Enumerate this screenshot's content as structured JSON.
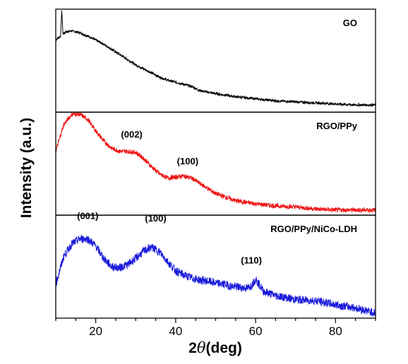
{
  "chart_data": {
    "type": "line",
    "title": "",
    "xlabel": "2θ (deg)",
    "xlabel_parts": {
      "num": "2",
      "sym": "θ",
      "rest": "(deg)"
    },
    "ylabel": "Intensity (a.u.)",
    "xlim": [
      10,
      90
    ],
    "xticks": [
      20,
      40,
      60,
      80
    ],
    "grid": false,
    "panels": [
      {
        "name": "GO",
        "color": "#000000",
        "points": [
          [
            10,
            0.7
          ],
          [
            11.2,
            0.74
          ],
          [
            11.5,
            0.99
          ],
          [
            11.8,
            0.76
          ],
          [
            12.5,
            0.78
          ],
          [
            14,
            0.79
          ],
          [
            16,
            0.77
          ],
          [
            18,
            0.74
          ],
          [
            20,
            0.7
          ],
          [
            22,
            0.66
          ],
          [
            24,
            0.61
          ],
          [
            26,
            0.56
          ],
          [
            28,
            0.51
          ],
          [
            30,
            0.46
          ],
          [
            32,
            0.42
          ],
          [
            34,
            0.38
          ],
          [
            36,
            0.34
          ],
          [
            38,
            0.31
          ],
          [
            40,
            0.29
          ],
          [
            42,
            0.27
          ],
          [
            44,
            0.25
          ],
          [
            46,
            0.21
          ],
          [
            50,
            0.18
          ],
          [
            55,
            0.15
          ],
          [
            60,
            0.13
          ],
          [
            65,
            0.11
          ],
          [
            70,
            0.1
          ],
          [
            75,
            0.09
          ],
          [
            80,
            0.08
          ],
          [
            85,
            0.07
          ],
          [
            90,
            0.07
          ]
        ],
        "noise": 0.012,
        "peaks": []
      },
      {
        "name": "RGO/PPy",
        "color": "#ee1111",
        "points": [
          [
            10,
            0.62
          ],
          [
            12,
            0.88
          ],
          [
            14,
            0.98
          ],
          [
            16,
            0.98
          ],
          [
            18,
            0.93
          ],
          [
            20,
            0.82
          ],
          [
            22,
            0.72
          ],
          [
            24,
            0.65
          ],
          [
            26,
            0.62
          ],
          [
            28,
            0.62
          ],
          [
            30,
            0.61
          ],
          [
            32,
            0.55
          ],
          [
            34,
            0.47
          ],
          [
            36,
            0.4
          ],
          [
            38,
            0.36
          ],
          [
            40,
            0.37
          ],
          [
            42,
            0.38
          ],
          [
            44,
            0.36
          ],
          [
            46,
            0.31
          ],
          [
            48,
            0.26
          ],
          [
            50,
            0.21
          ],
          [
            55,
            0.14
          ],
          [
            60,
            0.11
          ],
          [
            65,
            0.09
          ],
          [
            70,
            0.08
          ],
          [
            75,
            0.06
          ],
          [
            80,
            0.05
          ],
          [
            85,
            0.05
          ],
          [
            90,
            0.05
          ]
        ],
        "noise": 0.022,
        "peaks": [
          {
            "label": "(002)",
            "x": 29
          },
          {
            "label": "(100)",
            "x": 43
          }
        ]
      },
      {
        "name": "RGO/PPy/NiCo-LDH",
        "color": "#1a1adc",
        "points": [
          [
            10,
            0.33
          ],
          [
            12,
            0.6
          ],
          [
            14,
            0.72
          ],
          [
            16,
            0.77
          ],
          [
            18,
            0.77
          ],
          [
            20,
            0.7
          ],
          [
            22,
            0.58
          ],
          [
            24,
            0.5
          ],
          [
            26,
            0.49
          ],
          [
            28,
            0.52
          ],
          [
            30,
            0.58
          ],
          [
            32,
            0.65
          ],
          [
            34,
            0.69
          ],
          [
            36,
            0.64
          ],
          [
            38,
            0.55
          ],
          [
            40,
            0.46
          ],
          [
            42,
            0.42
          ],
          [
            44,
            0.39
          ],
          [
            46,
            0.37
          ],
          [
            48,
            0.36
          ],
          [
            50,
            0.34
          ],
          [
            52,
            0.33
          ],
          [
            54,
            0.31
          ],
          [
            56,
            0.3
          ],
          [
            58,
            0.29
          ],
          [
            59,
            0.32
          ],
          [
            60,
            0.38
          ],
          [
            61,
            0.32
          ],
          [
            62,
            0.26
          ],
          [
            65,
            0.22
          ],
          [
            70,
            0.18
          ],
          [
            75,
            0.17
          ],
          [
            80,
            0.13
          ],
          [
            85,
            0.1
          ],
          [
            90,
            0.05
          ]
        ],
        "noise": 0.04,
        "peaks": [
          {
            "label": "(001)",
            "x": 18
          },
          {
            "label": "(100)",
            "x": 35
          },
          {
            "label": "(110)",
            "x": 60
          }
        ]
      }
    ]
  }
}
